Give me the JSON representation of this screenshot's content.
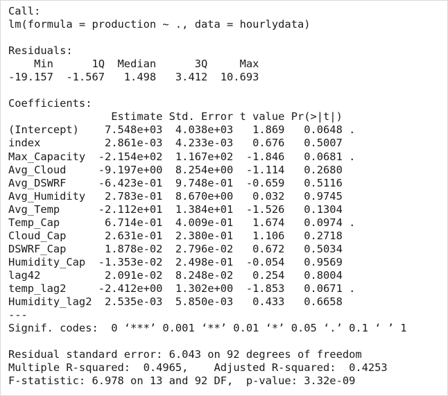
{
  "console_output": {
    "lines": [
      "Call:",
      "lm(formula = production ~ ., data = hourlydata)",
      "",
      "Residuals:",
      "    Min      1Q  Median      3Q     Max ",
      "-19.157  -1.567   1.498   3.412  10.693 ",
      "",
      "Coefficients:",
      "                Estimate Std. Error t value Pr(>|t|)  ",
      "(Intercept)    7.548e+03  4.038e+03   1.869   0.0648 .",
      "index          2.861e-03  4.233e-03   0.676   0.5007  ",
      "Max_Capacity  -2.154e+02  1.167e+02  -1.846   0.0681 .",
      "Avg_Cloud     -9.197e+00  8.254e+00  -1.114   0.2680  ",
      "Avg_DSWRF     -6.423e-01  9.748e-01  -0.659   0.5116  ",
      "Avg_Humidity   2.783e-01  8.670e+00   0.032   0.9745  ",
      "Avg_Temp      -2.112e+01  1.384e+01  -1.526   0.1304  ",
      "Temp_Cap       6.714e-01  4.009e-01   1.674   0.0974 .",
      "Cloud_Cap      2.631e-01  2.380e-01   1.106   0.2718  ",
      "DSWRF_Cap      1.878e-02  2.796e-02   0.672   0.5034  ",
      "Humidity_Cap  -1.353e-02  2.498e-01  -0.054   0.9569  ",
      "lag42          2.091e-02  8.248e-02   0.254   0.8004  ",
      "temp_lag2     -2.412e+00  1.302e+00  -1.853   0.0671 .",
      "Humidity_lag2  2.535e-03  5.850e-03   0.433   0.6658  ",
      "---",
      "Signif. codes:  0 ‘***’ 0.001 ‘**’ 0.01 ‘*’ 0.05 ‘.’ 0.1 ‘ ’ 1",
      "",
      "Residual standard error: 6.043 on 92 degrees of freedom",
      "Multiple R-squared:  0.4965,\tAdjusted R-squared:  0.4253 ",
      "F-statistic: 6.978 on 13 and 92 DF,  p-value: 3.32e-09"
    ]
  }
}
